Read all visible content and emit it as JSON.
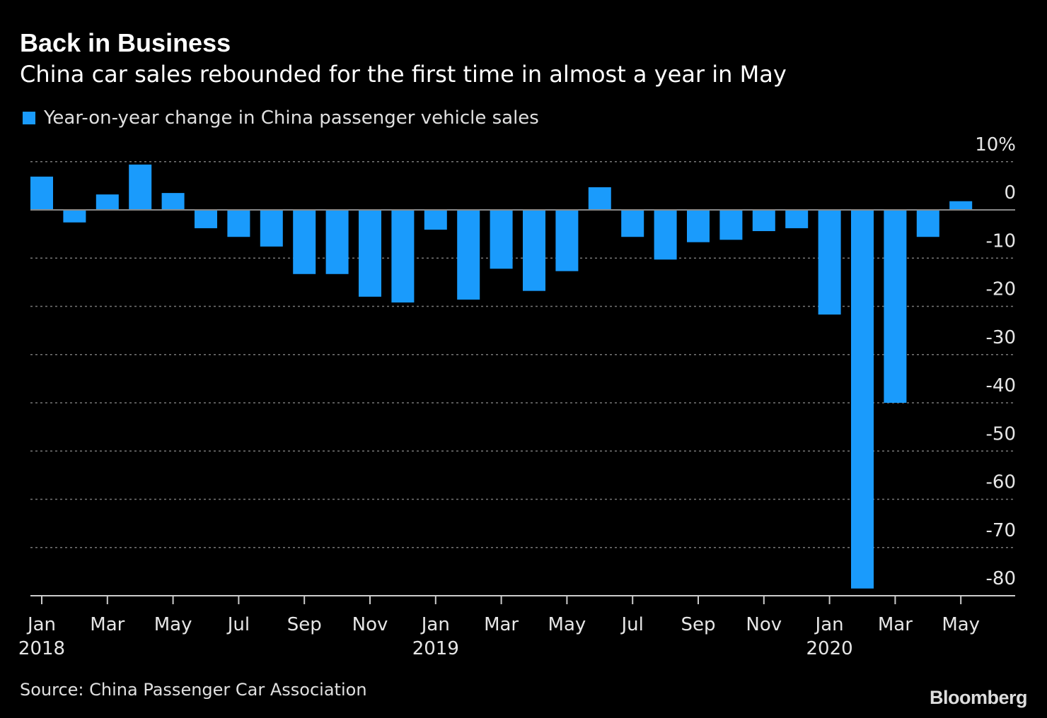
{
  "title": "Back in Business",
  "subtitle": "China car sales rebounded for the first time in almost a year in May",
  "source": "Source: China Passenger Car Association",
  "logo": "Bloomberg",
  "chart_data": {
    "type": "bar",
    "title": "Back in Business",
    "subtitle": "China car sales rebounded for the first time in almost a year in May",
    "legend": "Year-on-year change in China passenger vehicle sales",
    "legend_position": "top-left",
    "color": "#1a9bfc",
    "categories": [
      "Jan 2018",
      "Feb 2018",
      "Mar 2018",
      "Apr 2018",
      "May 2018",
      "Jun 2018",
      "Jul 2018",
      "Aug 2018",
      "Sep 2018",
      "Oct 2018",
      "Nov 2018",
      "Dec 2018",
      "Jan 2019",
      "Feb 2019",
      "Mar 2019",
      "Apr 2019",
      "May 2019",
      "Jun 2019",
      "Jul 2019",
      "Aug 2019",
      "Sep 2019",
      "Oct 2019",
      "Nov 2019",
      "Dec 2019",
      "Jan 2020",
      "Feb 2020",
      "Mar 2020",
      "Apr 2020",
      "May 2020"
    ],
    "values": [
      6.9,
      -2.6,
      3.2,
      9.4,
      3.5,
      -3.8,
      -5.6,
      -7.6,
      -13.3,
      -13.3,
      -18.0,
      -19.2,
      -4.1,
      -18.6,
      -12.2,
      -16.8,
      -12.7,
      4.7,
      -5.6,
      -10.3,
      -6.7,
      -6.2,
      -4.4,
      -3.8,
      -21.7,
      -78.5,
      -40.0,
      -5.6,
      1.8
    ],
    "ylim": [
      -80,
      10
    ],
    "y_ticks": [
      "10%",
      "0",
      "-10",
      "-20",
      "-30",
      "-40",
      "-50",
      "-60",
      "-70",
      "-80"
    ],
    "y_tick_values": [
      10,
      0,
      -10,
      -20,
      -30,
      -40,
      -50,
      -60,
      -70,
      -80
    ],
    "x_tick_labels": [
      [
        "Jan",
        "2018"
      ],
      [
        "Mar",
        ""
      ],
      [
        "May",
        ""
      ],
      [
        "Jul",
        ""
      ],
      [
        "Sep",
        ""
      ],
      [
        "Nov",
        ""
      ],
      [
        "Jan",
        "2019"
      ],
      [
        "Mar",
        ""
      ],
      [
        "May",
        ""
      ],
      [
        "Jul",
        ""
      ],
      [
        "Sep",
        ""
      ],
      [
        "Nov",
        ""
      ],
      [
        "Jan",
        "2020"
      ],
      [
        "Mar",
        ""
      ],
      [
        "May",
        ""
      ]
    ],
    "grid": true,
    "y_axis_side": "right"
  }
}
